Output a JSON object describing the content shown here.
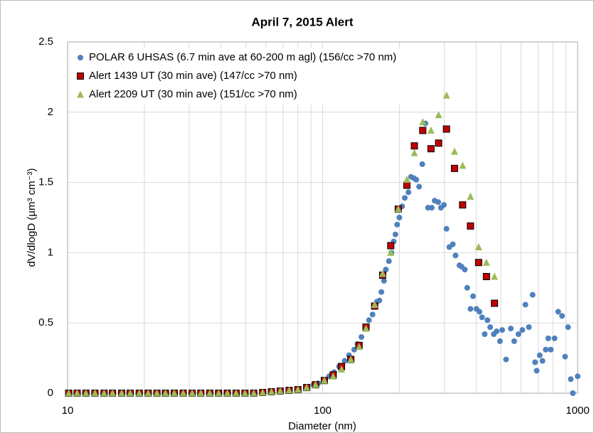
{
  "chart_data": {
    "type": "scatter",
    "title": "April 7, 2015 Alert",
    "xlabel": "Diameter (nm)",
    "ylabel": "dV/dlogD (µm³ cm⁻³)",
    "xscale": "log",
    "xlim": [
      10,
      1000
    ],
    "ylim": [
      0,
      2.5
    ],
    "xticks": [
      10,
      100,
      1000
    ],
    "xminorticks": [
      20,
      30,
      40,
      50,
      60,
      70,
      80,
      90,
      200,
      300,
      400,
      500,
      600,
      700,
      800,
      900
    ],
    "yticks": [
      0,
      0.5,
      1,
      1.5,
      2,
      2.5
    ],
    "grid": true,
    "legend": "upper left",
    "series": [
      {
        "name": "POLAR 6 UHSAS (6.7 min ave at 60-200 m agl) (156/cc >70 nm)",
        "color": "#4f81bd",
        "marker": "circle",
        "x": [
          10.1,
          10.9,
          11.8,
          12.8,
          13.9,
          15.0,
          16.3,
          17.6,
          19.1,
          20.7,
          22.4,
          24.2,
          26.2,
          28.4,
          30.8,
          33.3,
          36.1,
          39.1,
          42.3,
          45.8,
          49.6,
          53.7,
          58.2,
          63.0,
          68.2,
          73.9,
          80.0,
          86.6,
          92,
          96,
          101,
          106,
          111,
          116,
          122,
          127,
          133,
          137,
          142,
          147,
          152,
          157,
          163,
          167,
          170,
          174,
          177,
          182,
          186,
          190,
          193,
          196,
          200,
          205,
          210,
          217,
          222,
          228,
          233,
          239,
          246,
          253,
          259,
          268,
          275,
          284,
          291,
          299,
          306,
          314,
          324,
          332,
          344,
          351,
          361,
          369,
          380,
          389,
          401,
          412,
          422,
          432,
          443,
          454,
          469,
          481,
          496,
          506,
          524,
          547,
          564,
          586,
          607,
          624,
          644,
          666,
          681,
          691,
          710,
          728,
          750,
          767,
          785,
          812,
          839,
          869,
          893,
          917,
          940,
          958,
          1000
        ],
        "values": [
          0,
          0,
          0,
          0,
          0,
          0,
          0,
          0,
          0,
          0,
          0,
          0,
          0,
          0,
          0,
          0,
          0,
          0,
          0,
          0,
          0,
          0,
          0.005,
          0.01,
          0.015,
          0.02,
          0.03,
          0.045,
          0.06,
          0.07,
          0.09,
          0.12,
          0.15,
          0.19,
          0.23,
          0.27,
          0.31,
          0.35,
          0.4,
          0.46,
          0.52,
          0.56,
          0.65,
          0.66,
          0.72,
          0.8,
          0.88,
          0.94,
          1.0,
          1.08,
          1.13,
          1.2,
          1.25,
          1.33,
          1.39,
          1.43,
          1.54,
          1.53,
          1.52,
          1.47,
          1.63,
          1.92,
          1.32,
          1.32,
          1.37,
          1.36,
          1.32,
          1.34,
          1.17,
          1.04,
          1.06,
          0.98,
          0.91,
          0.9,
          0.88,
          0.75,
          0.6,
          0.69,
          0.6,
          0.58,
          0.54,
          0.42,
          0.52,
          0.47,
          0.42,
          0.44,
          0.37,
          0.45,
          0.24,
          0.46,
          0.37,
          0.42,
          0.45,
          0.63,
          0.47,
          0.7,
          0.22,
          0.16,
          0.27,
          0.23,
          0.31,
          0.39,
          0.31,
          0.39,
          0.58,
          0.55,
          0.26,
          0.47,
          0.1,
          0.0,
          0.12
        ]
      },
      {
        "name": "Alert 1439 UT (30 min ave) (147/cc >70 nm)",
        "color": "#c00000",
        "marker": "square",
        "x": [
          10.1,
          10.9,
          11.8,
          12.8,
          13.9,
          15.0,
          16.3,
          17.6,
          19.1,
          20.7,
          22.4,
          24.2,
          26.2,
          28.4,
          30.8,
          33.3,
          36.1,
          39.1,
          42.3,
          45.8,
          49.6,
          53.7,
          58.2,
          63.0,
          68.2,
          73.9,
          80.0,
          86.6,
          93.8,
          101.6,
          110,
          118.6,
          129,
          139,
          148,
          160,
          172,
          185,
          198,
          214,
          229,
          247,
          266,
          285,
          306,
          329,
          354,
          380,
          409,
          439,
          472
        ],
        "values": [
          0,
          0,
          0,
          0,
          0,
          0,
          0,
          0,
          0,
          0,
          0,
          0,
          0,
          0,
          0,
          0,
          0,
          0,
          0,
          0,
          0,
          0,
          0.005,
          0.01,
          0.015,
          0.02,
          0.025,
          0.04,
          0.06,
          0.09,
          0.13,
          0.19,
          0.24,
          0.34,
          0.47,
          0.62,
          0.84,
          1.05,
          1.31,
          1.48,
          1.76,
          1.87,
          1.74,
          1.78,
          1.88,
          1.6,
          1.34,
          1.19,
          0.93,
          0.83,
          0.64
        ]
      },
      {
        "name": "Alert 2209 UT (30 min ave) (151/cc >70 nm)",
        "color": "#9bbb59",
        "marker": "triangle",
        "x": [
          10.1,
          10.9,
          11.8,
          12.8,
          13.9,
          15.0,
          16.3,
          17.6,
          19.1,
          20.7,
          22.4,
          24.2,
          26.2,
          28.4,
          30.8,
          33.3,
          36.1,
          39.1,
          42.3,
          45.8,
          49.6,
          53.7,
          58.2,
          63.0,
          68.2,
          73.9,
          80.0,
          86.6,
          93.8,
          101.6,
          110,
          118.6,
          129,
          139,
          148,
          160,
          172,
          185,
          198,
          214,
          229,
          247,
          266,
          285,
          306,
          329,
          354,
          380,
          409,
          439,
          472
        ],
        "values": [
          0,
          0,
          0,
          0,
          0,
          0,
          0,
          0,
          0,
          0,
          0,
          0,
          0,
          0,
          0,
          0,
          0,
          0,
          0,
          0,
          0,
          0,
          0.005,
          0.01,
          0.015,
          0.02,
          0.025,
          0.04,
          0.06,
          0.09,
          0.12,
          0.17,
          0.24,
          0.33,
          0.46,
          0.63,
          0.85,
          1.0,
          1.31,
          1.52,
          1.71,
          1.93,
          1.87,
          1.98,
          2.12,
          1.72,
          1.62,
          1.4,
          1.04,
          0.93,
          0.83
        ]
      }
    ]
  }
}
